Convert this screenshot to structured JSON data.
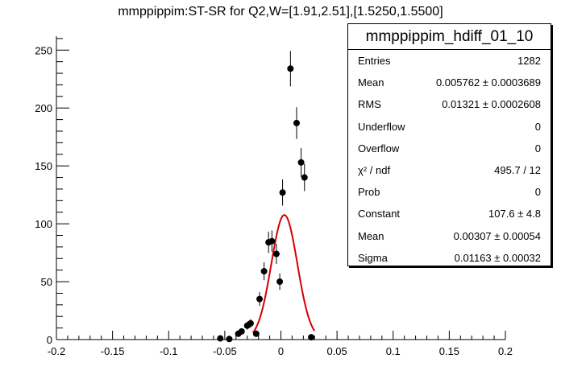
{
  "chart_data": {
    "type": "scatter",
    "title": "mmppippim:ST-SR for Q2,W=[1.91,2.51],[1.5250,1.5500]",
    "xlabel": "",
    "ylabel": "",
    "xlim": [
      -0.2,
      0.2
    ],
    "ylim": [
      0,
      262
    ],
    "x_ticks": [
      -0.2,
      -0.15,
      -0.1,
      -0.05,
      0,
      0.05,
      0.1,
      0.15,
      0.2
    ],
    "x_tick_labels": [
      "-0.2",
      "-0.15",
      "-0.1",
      "-0.05",
      "0",
      "0.05",
      "0.1",
      "0.15",
      "0.2"
    ],
    "y_ticks": [
      0,
      50,
      100,
      150,
      200,
      250
    ],
    "y_tick_labels": [
      "0",
      "50",
      "100",
      "150",
      "200",
      "250"
    ],
    "grid": false,
    "series": [
      {
        "type": "points-with-errors",
        "color": "#000000",
        "x": [
          -0.054,
          -0.046,
          -0.038,
          -0.035,
          -0.03,
          -0.027,
          -0.022,
          -0.019,
          -0.015,
          -0.011,
          -0.008,
          -0.004,
          -0.001,
          0.0015,
          0.0085,
          0.014,
          0.018,
          0.021,
          0.027
        ],
        "y": [
          1,
          0.5,
          5,
          7,
          12,
          14,
          5,
          35,
          59,
          84,
          85,
          74,
          50,
          127,
          234,
          187,
          153,
          140,
          2
        ],
        "yerr": [
          1,
          0.7,
          2.2,
          2.6,
          3.5,
          3.7,
          2.2,
          5.9,
          7.7,
          9.2,
          9.2,
          8.6,
          7.1,
          11.3,
          15.3,
          13.7,
          12.4,
          11.8,
          1.4
        ]
      },
      {
        "type": "gaussian-fit",
        "color": "#d40000",
        "constant": 107.6,
        "mean": 0.00307,
        "sigma": 0.01163,
        "x_range": [
          -0.025,
          0.03
        ]
      }
    ],
    "stats_box": {
      "name": "mmppippim_hdiff_01_10",
      "rows": [
        {
          "label": "Entries",
          "value": "1282"
        },
        {
          "label": "Mean",
          "value": "0.005762 ± 0.0003689"
        },
        {
          "label": "RMS",
          "value": "0.01321 ± 0.0002608"
        },
        {
          "label": "Underflow",
          "value": "0"
        },
        {
          "label": "Overflow",
          "value": "0"
        },
        {
          "label": "χ² / ndf",
          "value": "495.7 / 12"
        },
        {
          "label": "Prob",
          "value": "0"
        },
        {
          "label": "Constant",
          "value": "107.6 ± 4.8"
        },
        {
          "label": "Mean",
          "value": "0.00307 ± 0.00054"
        },
        {
          "label": "Sigma",
          "value": "0.01163 ± 0.00032"
        }
      ]
    }
  }
}
